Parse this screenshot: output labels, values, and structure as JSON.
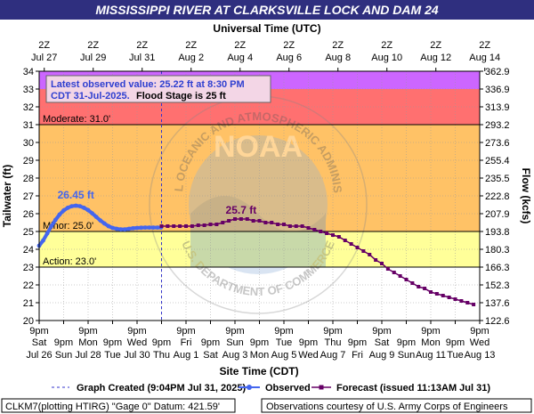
{
  "header": {
    "title": "MISSISSIPPI RIVER AT CLARKSVILLE LOCK AND DAM 24",
    "top_axis_title": "Universal Time (UTC)"
  },
  "colors": {
    "title_bg": "#2f2f7f",
    "major": "#cc66ff",
    "moderate": "#ff7070",
    "minor": "#ffc266",
    "action": "#ffff99",
    "observed": "#4466ee",
    "forecast": "#660066",
    "created_line": "#3333cc"
  },
  "chart_data": {
    "type": "line",
    "y_left_label": "Tailwater (ft)",
    "y_right_label": "Flow (kcfs)",
    "x_label": "Site Time (CDT)",
    "ylim": [
      20,
      34
    ],
    "y_ticks": [
      "20",
      "21",
      "22",
      "23",
      "24",
      "25",
      "26",
      "27",
      "28",
      "29",
      "30",
      "31",
      "32",
      "33",
      "34"
    ],
    "flow_ticks": [
      "122.6",
      "137.6",
      "152.3",
      "166.3",
      "180.3",
      "193.8",
      "207.9",
      "222.8",
      "235.5",
      "255.4",
      "273.6",
      "293.2",
      "313.9",
      "336.9",
      "362.9"
    ],
    "x_range_hours": [
      0,
      432
    ],
    "bottom_ticks": [
      {
        "h": 0,
        "line1": "9pm",
        "line2": "Sat",
        "line3": "Jul 26"
      },
      {
        "h": 24,
        "line1": "9pm",
        "line2": "Sun",
        "line3": ""
      },
      {
        "h": 48,
        "line1": "9pm",
        "line2": "Mon",
        "line3": "Jul 28"
      },
      {
        "h": 72,
        "line1": "9pm",
        "line2": "Tue",
        "line3": ""
      },
      {
        "h": 96,
        "line1": "9pm",
        "line2": "Wed",
        "line3": "Jul 30"
      },
      {
        "h": 120,
        "line1": "9pm",
        "line2": "Thu",
        "line3": ""
      },
      {
        "h": 144,
        "line1": "9pm",
        "line2": "Fri",
        "line3": "Aug 1"
      },
      {
        "h": 168,
        "line1": "9pm",
        "line2": "Sat",
        "line3": ""
      },
      {
        "h": 192,
        "line1": "9pm",
        "line2": "Sun",
        "line3": "Aug 3"
      },
      {
        "h": 216,
        "line1": "9pm",
        "line2": "Mon",
        "line3": ""
      },
      {
        "h": 240,
        "line1": "9pm",
        "line2": "Tue",
        "line3": "Aug 5"
      },
      {
        "h": 264,
        "line1": "9pm",
        "line2": "Wed",
        "line3": ""
      },
      {
        "h": 288,
        "line1": "9pm",
        "line2": "Thu",
        "line3": "Aug 7"
      },
      {
        "h": 312,
        "line1": "9pm",
        "line2": "Fri",
        "line3": ""
      },
      {
        "h": 336,
        "line1": "9pm",
        "line2": "Sat",
        "line3": "Aug 9"
      },
      {
        "h": 360,
        "line1": "9pm",
        "line2": "Sun",
        "line3": ""
      },
      {
        "h": 384,
        "line1": "9pm",
        "line2": "Mon",
        "line3": "Aug 11"
      },
      {
        "h": 408,
        "line1": "9pm",
        "line2": "Tue",
        "line3": ""
      },
      {
        "h": 432,
        "line1": "9pm",
        "line2": "Wed",
        "line3": "Aug 13"
      }
    ],
    "bottom_labeled_every": 2,
    "top_ticks": [
      {
        "h": 5,
        "line1": "2Z",
        "line2": "Jul 27"
      },
      {
        "h": 53,
        "line1": "2Z",
        "line2": "Jul 29"
      },
      {
        "h": 101,
        "line1": "2Z",
        "line2": "Jul 31"
      },
      {
        "h": 149,
        "line1": "2Z",
        "line2": "Aug 2"
      },
      {
        "h": 197,
        "line1": "2Z",
        "line2": "Aug 4"
      },
      {
        "h": 245,
        "line1": "2Z",
        "line2": "Aug 6"
      },
      {
        "h": 293,
        "line1": "2Z",
        "line2": "Aug 8"
      },
      {
        "h": 341,
        "line1": "2Z",
        "line2": "Aug 10"
      },
      {
        "h": 389,
        "line1": "2Z",
        "line2": "Aug 12"
      },
      {
        "h": 437,
        "line1": "2Z",
        "line2": "Aug 14"
      }
    ],
    "flood_categories": [
      {
        "name": "Major",
        "from": 33.0,
        "to": 34.0,
        "label": ""
      },
      {
        "name": "Moderate",
        "from": 31.0,
        "to": 33.0,
        "label": "Moderate: 31.0'"
      },
      {
        "name": "Minor",
        "from": 25.0,
        "to": 31.0,
        "label": "Minor: 25.0'"
      },
      {
        "name": "Action",
        "from": 23.0,
        "to": 25.0,
        "label": "Action: 23.0'"
      }
    ],
    "created_at_h": 120,
    "observed": {
      "x": [
        0,
        4,
        8,
        12,
        16,
        20,
        24,
        28,
        32,
        36,
        40,
        44,
        48,
        52,
        56,
        60,
        64,
        68,
        72,
        76,
        80,
        84,
        88,
        92,
        96,
        100,
        104,
        108,
        112,
        116,
        119.5
      ],
      "y": [
        24.2,
        24.5,
        24.9,
        25.3,
        25.65,
        25.95,
        26.18,
        26.33,
        26.42,
        26.45,
        26.42,
        26.33,
        26.2,
        26.02,
        25.82,
        25.62,
        25.45,
        25.3,
        25.2,
        25.15,
        25.12,
        25.12,
        25.15,
        25.18,
        25.2,
        25.21,
        25.22,
        25.22,
        25.22,
        25.22,
        25.22
      ]
    },
    "forecast": {
      "x": [
        120,
        126,
        132,
        138,
        144,
        150,
        156,
        162,
        168,
        174,
        180,
        186,
        192,
        198,
        204,
        210,
        216,
        222,
        228,
        234,
        240,
        246,
        252,
        258,
        264,
        270,
        276,
        282,
        288,
        294,
        300,
        306,
        312,
        318,
        324,
        330,
        336,
        342,
        348,
        354,
        360,
        366,
        372,
        378,
        384,
        390,
        396,
        402,
        408,
        414,
        420,
        426
      ],
      "y": [
        25.3,
        25.3,
        25.3,
        25.3,
        25.3,
        25.3,
        25.35,
        25.35,
        25.4,
        25.4,
        25.5,
        25.6,
        25.7,
        25.7,
        25.7,
        25.6,
        25.6,
        25.5,
        25.5,
        25.4,
        25.4,
        25.3,
        25.3,
        25.3,
        25.2,
        25.1,
        25.0,
        24.9,
        24.8,
        24.7,
        24.5,
        24.3,
        24.1,
        23.9,
        23.7,
        23.4,
        23.2,
        22.9,
        22.7,
        22.5,
        22.3,
        22.1,
        21.9,
        21.8,
        21.6,
        21.5,
        21.4,
        21.3,
        21.2,
        21.1,
        21.0,
        20.9
      ]
    },
    "peak_observed_label": "26.45 ft",
    "peak_observed_x": 36,
    "peak_observed_y": 26.45,
    "peak_forecast_label": "25.7 ft",
    "peak_forecast_x": 198,
    "peak_forecast_y": 25.7,
    "latest": {
      "line1": "Latest observed value: 25.22 ft at 8:30 PM",
      "line2a": "CDT 31-Jul-2025.",
      "line2b": "Flood Stage is 25 ft"
    },
    "watermark": {
      "text": "NOAA",
      "ring_top": "NATIONAL OCEANIC AND ATMOSPHERIC ADMINISTRATION",
      "ring_bottom": "U.S. DEPARTMENT OF COMMERCE"
    }
  },
  "legend": {
    "created": "Graph Created (9:04PM Jul 31, 2025)",
    "observed": "Observed",
    "forecast": "Forecast (issued 11:13AM Jul 31)"
  },
  "footer": {
    "left": "CLKM7(plotting HTIRG) \"Gage 0\" Datum: 421.59'",
    "right": "Observations courtesy of U.S. Army Corps of Engineers"
  }
}
